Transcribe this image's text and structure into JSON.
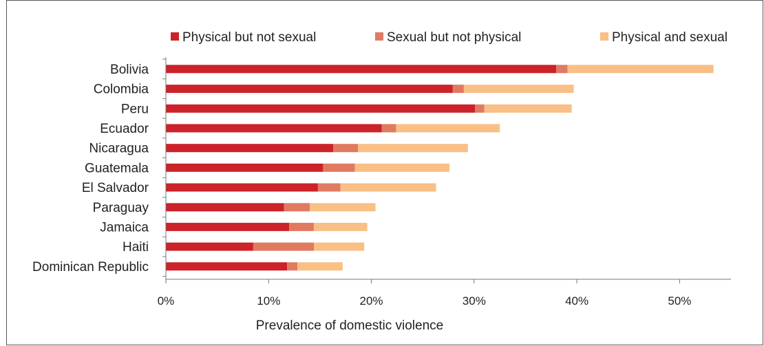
{
  "chart_data": {
    "type": "bar",
    "orientation": "horizontal",
    "stacked": true,
    "categories": [
      "Bolivia",
      "Colombia",
      "Peru",
      "Ecuador",
      "Nicaragua",
      "Guatemala",
      "El Salvador",
      "Paraguay",
      "Jamaica",
      "Haiti",
      "Dominican Republic"
    ],
    "series": [
      {
        "name": "Physical but not sexual",
        "color": "#cc2229",
        "values": [
          38.0,
          27.9,
          30.1,
          21.0,
          16.3,
          15.3,
          14.8,
          11.5,
          12.0,
          8.5,
          11.8
        ]
      },
      {
        "name": "Sexual but not physical",
        "color": "#e07a61",
        "values": [
          1.1,
          1.1,
          0.9,
          1.4,
          2.4,
          3.1,
          2.2,
          2.5,
          2.4,
          5.9,
          1.0
        ]
      },
      {
        "name": "Physical and sexual",
        "color": "#f9bf85",
        "values": [
          14.2,
          10.7,
          8.5,
          10.1,
          10.7,
          9.2,
          9.3,
          6.4,
          5.2,
          4.9,
          4.4
        ]
      }
    ],
    "xlabel": "Prevalence of domestic violence",
    "xlim": [
      0,
      55
    ],
    "xticks": [
      0,
      10,
      20,
      30,
      40,
      50
    ],
    "tick_format": "percent",
    "grid": false,
    "legend_position": "top"
  }
}
